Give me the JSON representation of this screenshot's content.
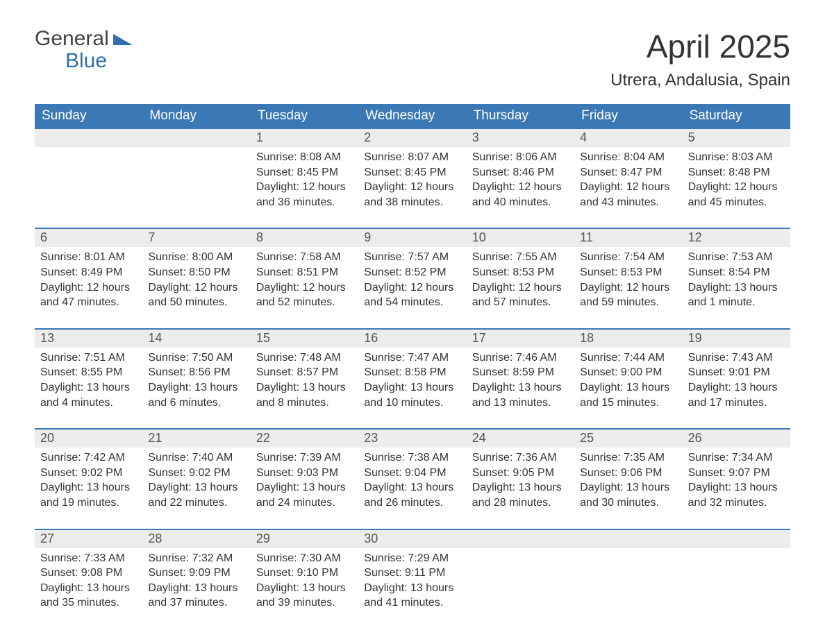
{
  "logo": {
    "word1": "General",
    "word2": "Blue",
    "word1_color": "#424242",
    "word2_color": "#2f6fae",
    "triangle_color": "#2f6fae"
  },
  "title": "April 2025",
  "location": "Utrera, Andalusia, Spain",
  "colors": {
    "header_bg": "#3b78b6",
    "header_text": "#ffffff",
    "daynum_bg": "#ececec",
    "daynum_text": "#555555",
    "cell_border": "#3b78b6",
    "body_text": "#333333",
    "background": "#ffffff"
  },
  "typography": {
    "title_fontsize": 46,
    "location_fontsize": 24,
    "dayheader_fontsize": 19,
    "daynum_fontsize": 18,
    "detail_fontsize": 16,
    "logo_fontsize": 30
  },
  "layout": {
    "columns": 7,
    "rows": 5,
    "cell_min_height": 125
  },
  "day_names": [
    "Sunday",
    "Monday",
    "Tuesday",
    "Wednesday",
    "Thursday",
    "Friday",
    "Saturday"
  ],
  "weeks": [
    [
      null,
      null,
      {
        "n": "1",
        "sunrise": "8:08 AM",
        "sunset": "8:45 PM",
        "daylight": "12 hours and 36 minutes."
      },
      {
        "n": "2",
        "sunrise": "8:07 AM",
        "sunset": "8:45 PM",
        "daylight": "12 hours and 38 minutes."
      },
      {
        "n": "3",
        "sunrise": "8:06 AM",
        "sunset": "8:46 PM",
        "daylight": "12 hours and 40 minutes."
      },
      {
        "n": "4",
        "sunrise": "8:04 AM",
        "sunset": "8:47 PM",
        "daylight": "12 hours and 43 minutes."
      },
      {
        "n": "5",
        "sunrise": "8:03 AM",
        "sunset": "8:48 PM",
        "daylight": "12 hours and 45 minutes."
      }
    ],
    [
      {
        "n": "6",
        "sunrise": "8:01 AM",
        "sunset": "8:49 PM",
        "daylight": "12 hours and 47 minutes."
      },
      {
        "n": "7",
        "sunrise": "8:00 AM",
        "sunset": "8:50 PM",
        "daylight": "12 hours and 50 minutes."
      },
      {
        "n": "8",
        "sunrise": "7:58 AM",
        "sunset": "8:51 PM",
        "daylight": "12 hours and 52 minutes."
      },
      {
        "n": "9",
        "sunrise": "7:57 AM",
        "sunset": "8:52 PM",
        "daylight": "12 hours and 54 minutes."
      },
      {
        "n": "10",
        "sunrise": "7:55 AM",
        "sunset": "8:53 PM",
        "daylight": "12 hours and 57 minutes."
      },
      {
        "n": "11",
        "sunrise": "7:54 AM",
        "sunset": "8:53 PM",
        "daylight": "12 hours and 59 minutes."
      },
      {
        "n": "12",
        "sunrise": "7:53 AM",
        "sunset": "8:54 PM",
        "daylight": "13 hours and 1 minute."
      }
    ],
    [
      {
        "n": "13",
        "sunrise": "7:51 AM",
        "sunset": "8:55 PM",
        "daylight": "13 hours and 4 minutes."
      },
      {
        "n": "14",
        "sunrise": "7:50 AM",
        "sunset": "8:56 PM",
        "daylight": "13 hours and 6 minutes."
      },
      {
        "n": "15",
        "sunrise": "7:48 AM",
        "sunset": "8:57 PM",
        "daylight": "13 hours and 8 minutes."
      },
      {
        "n": "16",
        "sunrise": "7:47 AM",
        "sunset": "8:58 PM",
        "daylight": "13 hours and 10 minutes."
      },
      {
        "n": "17",
        "sunrise": "7:46 AM",
        "sunset": "8:59 PM",
        "daylight": "13 hours and 13 minutes."
      },
      {
        "n": "18",
        "sunrise": "7:44 AM",
        "sunset": "9:00 PM",
        "daylight": "13 hours and 15 minutes."
      },
      {
        "n": "19",
        "sunrise": "7:43 AM",
        "sunset": "9:01 PM",
        "daylight": "13 hours and 17 minutes."
      }
    ],
    [
      {
        "n": "20",
        "sunrise": "7:42 AM",
        "sunset": "9:02 PM",
        "daylight": "13 hours and 19 minutes."
      },
      {
        "n": "21",
        "sunrise": "7:40 AM",
        "sunset": "9:02 PM",
        "daylight": "13 hours and 22 minutes."
      },
      {
        "n": "22",
        "sunrise": "7:39 AM",
        "sunset": "9:03 PM",
        "daylight": "13 hours and 24 minutes."
      },
      {
        "n": "23",
        "sunrise": "7:38 AM",
        "sunset": "9:04 PM",
        "daylight": "13 hours and 26 minutes."
      },
      {
        "n": "24",
        "sunrise": "7:36 AM",
        "sunset": "9:05 PM",
        "daylight": "13 hours and 28 minutes."
      },
      {
        "n": "25",
        "sunrise": "7:35 AM",
        "sunset": "9:06 PM",
        "daylight": "13 hours and 30 minutes."
      },
      {
        "n": "26",
        "sunrise": "7:34 AM",
        "sunset": "9:07 PM",
        "daylight": "13 hours and 32 minutes."
      }
    ],
    [
      {
        "n": "27",
        "sunrise": "7:33 AM",
        "sunset": "9:08 PM",
        "daylight": "13 hours and 35 minutes."
      },
      {
        "n": "28",
        "sunrise": "7:32 AM",
        "sunset": "9:09 PM",
        "daylight": "13 hours and 37 minutes."
      },
      {
        "n": "29",
        "sunrise": "7:30 AM",
        "sunset": "9:10 PM",
        "daylight": "13 hours and 39 minutes."
      },
      {
        "n": "30",
        "sunrise": "7:29 AM",
        "sunset": "9:11 PM",
        "daylight": "13 hours and 41 minutes."
      },
      null,
      null,
      null
    ]
  ],
  "labels": {
    "sunrise_prefix": "Sunrise: ",
    "sunset_prefix": "Sunset: ",
    "daylight_prefix": "Daylight: "
  }
}
